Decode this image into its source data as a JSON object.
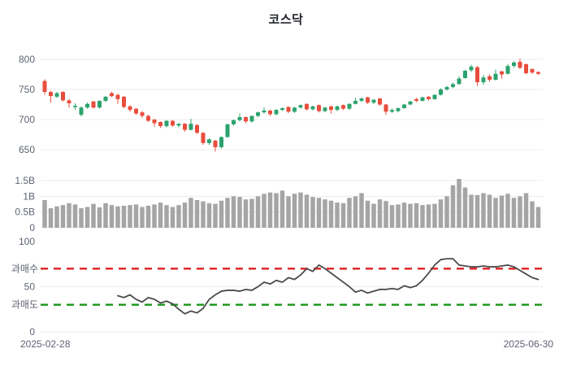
{
  "title": "코스닥",
  "x_axis": {
    "start": "2025-02-28",
    "end": "2025-06-30"
  },
  "colors": {
    "background": "#ffffff",
    "grid": "#ececec",
    "axis_text": "#5d6371",
    "title_text": "#22252e",
    "up": "#2ba36d",
    "down": "#e94d3d",
    "volume_bar": "#a5a5a5",
    "rsi_line": "#4b4b4b",
    "overbought_line": "#e01f1f",
    "oversold_line": "#179717"
  },
  "chart_data": [
    {
      "type": "candlestick",
      "name": "price-panel",
      "title": "코스닥",
      "ylabel": "",
      "yticks": [
        800,
        750,
        700,
        650
      ],
      "ylim": [
        645,
        805
      ],
      "up_color": "#2ba36d",
      "down_color": "#e94d3d",
      "candles": [
        [
          764,
          767,
          741,
          746
        ],
        [
          746,
          748,
          728,
          739
        ],
        [
          738,
          746,
          736,
          744
        ],
        [
          746,
          747,
          730,
          732
        ],
        [
          732,
          734,
          720,
          727
        ],
        [
          721,
          727,
          716,
          723
        ],
        [
          708,
          722,
          705,
          720
        ],
        [
          720,
          728,
          718,
          726
        ],
        [
          730,
          731,
          718,
          720
        ],
        [
          720,
          732,
          718,
          731
        ],
        [
          731,
          739,
          729,
          738
        ],
        [
          744,
          746,
          737,
          739
        ],
        [
          741,
          743,
          726,
          734
        ],
        [
          738,
          739,
          719,
          721
        ],
        [
          722,
          724,
          713,
          716
        ],
        [
          718,
          719,
          708,
          710
        ],
        [
          712,
          714,
          703,
          706
        ],
        [
          706,
          708,
          696,
          698
        ],
        [
          700,
          701,
          688,
          694
        ],
        [
          696,
          697,
          686,
          689
        ],
        [
          689,
          699,
          687,
          698
        ],
        [
          698,
          699,
          688,
          690
        ],
        [
          690,
          694,
          687,
          693
        ],
        [
          693,
          694,
          680,
          683
        ],
        [
          683,
          701,
          682,
          693
        ],
        [
          691,
          692,
          676,
          678
        ],
        [
          678,
          679,
          658,
          661
        ],
        [
          661,
          669,
          658,
          667
        ],
        [
          665,
          666,
          647,
          654
        ],
        [
          654,
          672,
          652,
          671
        ],
        [
          671,
          693,
          670,
          692
        ],
        [
          692,
          700,
          690,
          699
        ],
        [
          699,
          710,
          697,
          704
        ],
        [
          704,
          705,
          694,
          697
        ],
        [
          697,
          707,
          695,
          706
        ],
        [
          706,
          713,
          704,
          712
        ],
        [
          712,
          720,
          710,
          715
        ],
        [
          715,
          716,
          706,
          709
        ],
        [
          709,
          717,
          707,
          716
        ],
        [
          716,
          720,
          714,
          719
        ],
        [
          721,
          722,
          711,
          713
        ],
        [
          713,
          721,
          711,
          720
        ],
        [
          720,
          725,
          718,
          724
        ],
        [
          726,
          727,
          715,
          717
        ],
        [
          717,
          723,
          715,
          722
        ],
        [
          724,
          725,
          712,
          714
        ],
        [
          714,
          721,
          712,
          720
        ],
        [
          722,
          723,
          710,
          716
        ],
        [
          716,
          723,
          714,
          722
        ],
        [
          724,
          725,
          716,
          718
        ],
        [
          718,
          727,
          716,
          726
        ],
        [
          726,
          736,
          725,
          731
        ],
        [
          731,
          737,
          729,
          735
        ],
        [
          737,
          738,
          726,
          728
        ],
        [
          728,
          734,
          726,
          733
        ],
        [
          735,
          736,
          723,
          725
        ],
        [
          725,
          726,
          708,
          713
        ],
        [
          713,
          718,
          711,
          716
        ],
        [
          714,
          720,
          712,
          719
        ],
        [
          719,
          726,
          718,
          725
        ],
        [
          725,
          731,
          724,
          730
        ],
        [
          734,
          736,
          729,
          731
        ],
        [
          731,
          738,
          730,
          737
        ],
        [
          738,
          739,
          732,
          734
        ],
        [
          734,
          742,
          733,
          741
        ],
        [
          741,
          752,
          740,
          750
        ],
        [
          750,
          756,
          748,
          754
        ],
        [
          754,
          761,
          752,
          759
        ],
        [
          759,
          772,
          758,
          768
        ],
        [
          769,
          783,
          768,
          781
        ],
        [
          782,
          791,
          779,
          788
        ],
        [
          787,
          789,
          756,
          762
        ],
        [
          762,
          774,
          758,
          770
        ],
        [
          772,
          775,
          763,
          766
        ],
        [
          766,
          783,
          765,
          776
        ],
        [
          780,
          781,
          768,
          775
        ],
        [
          776,
          792,
          775,
          789
        ],
        [
          789,
          797,
          786,
          795
        ],
        [
          796,
          801,
          784,
          786
        ],
        [
          792,
          793,
          775,
          777
        ],
        [
          784,
          785,
          776,
          778
        ],
        [
          779,
          780,
          774,
          776
        ]
      ]
    },
    {
      "type": "bar",
      "name": "volume-panel",
      "ylabel": "",
      "ytick_labels": [
        "1.5B",
        "1B",
        "0.5B",
        "0"
      ],
      "ytick_values": [
        1.5,
        1,
        0.5,
        0
      ],
      "ylim": [
        0,
        1.6
      ],
      "color": "#a5a5a5",
      "values": [
        0.88,
        0.62,
        0.68,
        0.72,
        0.78,
        0.74,
        0.62,
        0.66,
        0.76,
        0.65,
        0.78,
        0.72,
        0.68,
        0.7,
        0.72,
        0.74,
        0.66,
        0.7,
        0.74,
        0.8,
        0.72,
        0.66,
        0.72,
        0.8,
        0.95,
        0.88,
        0.84,
        0.78,
        0.76,
        0.86,
        0.95,
        1.0,
        0.98,
        0.9,
        0.92,
        1.0,
        1.08,
        1.12,
        1.1,
        1.18,
        1.0,
        1.08,
        1.12,
        1.05,
        0.98,
        0.95,
        0.9,
        0.86,
        0.8,
        0.78,
        0.95,
        1.0,
        1.1,
        0.86,
        0.76,
        0.9,
        0.85,
        0.72,
        0.74,
        0.8,
        0.76,
        0.78,
        0.72,
        0.74,
        0.76,
        0.9,
        1.0,
        1.35,
        1.55,
        1.28,
        1.05,
        1.04,
        1.1,
        1.05,
        0.95,
        1.02,
        1.08,
        0.95,
        1.0,
        1.1,
        0.84,
        0.66
      ]
    },
    {
      "type": "line",
      "name": "rsi-panel",
      "ylabel": "",
      "yticks": [
        100,
        50,
        0
      ],
      "ylim": [
        0,
        100
      ],
      "line_color": "#4b4b4b",
      "start_index": 12,
      "overbought": {
        "label": "과매수",
        "value": 70,
        "color": "#e01f1f"
      },
      "oversold": {
        "label": "과매도",
        "value": 30,
        "color": "#179717"
      },
      "values": [
        40,
        38,
        41,
        36,
        33,
        38,
        36,
        32,
        34,
        31,
        25,
        20,
        23,
        21,
        26,
        36,
        41,
        45,
        46,
        46,
        45,
        47,
        46,
        50,
        55,
        53,
        57,
        55,
        60,
        58,
        63,
        70,
        67,
        74,
        70,
        65,
        60,
        55,
        50,
        44,
        46,
        43,
        45,
        47,
        47,
        48,
        47,
        51,
        49,
        51,
        57,
        65,
        74,
        80,
        81,
        81,
        74,
        73,
        72,
        72,
        73,
        72,
        72,
        73,
        74,
        72,
        68,
        64,
        60,
        58
      ]
    }
  ]
}
